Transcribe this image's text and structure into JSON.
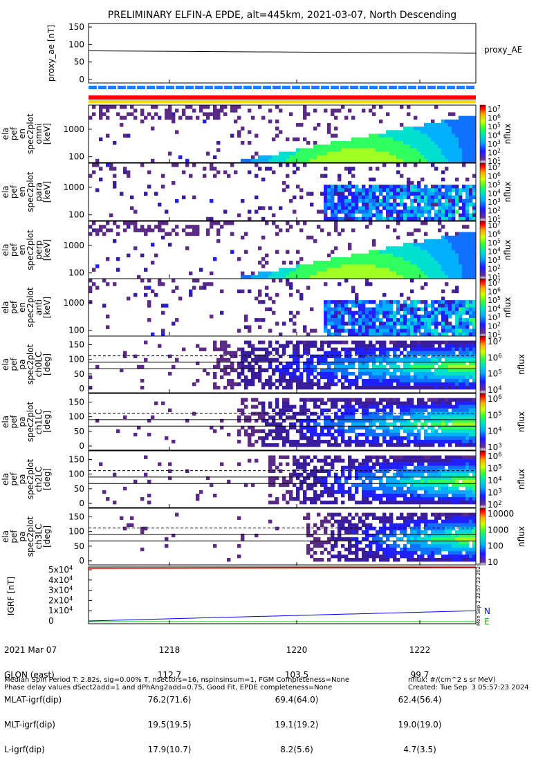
{
  "title": "PRELIMINARY ELFIN-A EPDE, alt=445km, 2021-03-07, North Descending",
  "colors": {
    "proxy": "#000000",
    "bar_blue": "#1E7BFF",
    "bar_red": "#FF0000",
    "bar_yellow": "#FFD700",
    "igrf_N": "#0000FF",
    "igrf_E": "#00CC00"
  },
  "chart_data": [
    {
      "type": "line",
      "panel": "proxy_ae",
      "ylabel": "proxy_ae [nT]",
      "legend": "proxy_AE",
      "yticks": [
        "150",
        "100",
        "50",
        "0"
      ],
      "ylim": [
        -10,
        160
      ],
      "x": [
        "1217",
        "1223"
      ],
      "values": [
        82,
        75
      ]
    },
    {
      "type": "heatmap",
      "panel": "energy-spectrograms",
      "ylabel": [
        "ela pef en spec2plot omni [keV]",
        "ela pef en spec2plot para [keV]",
        "ela pef en spec2plot perp [keV]",
        "ela pef en spec2plot anti [keV]"
      ],
      "yticks": [
        "1000",
        "100"
      ],
      "colorbar_label": "nflux",
      "colorbar_ticks": [
        "10^7",
        "10^6",
        "10^5",
        "10^4",
        "10^3",
        "10^2",
        "10^1"
      ],
      "scale": "log"
    },
    {
      "type": "heatmap",
      "panel": "pitch-angle-spectrograms",
      "ylabel": [
        "ela pef pa spec2plot ch0LC [deg]",
        "ela pef pa spec2plot ch1LC [deg]",
        "ela pef pa spec2plot ch2LC [deg]",
        "ela pef pa spec2plot ch3LC [deg]"
      ],
      "yticks": [
        "150",
        "100",
        "50",
        "0"
      ],
      "colorbar_label": "nflux",
      "colorbar_ticks": [
        [
          "10^7",
          "10^6",
          "10^5",
          "10^4"
        ],
        [
          "10^6",
          "10^5",
          "10^4",
          "10^3"
        ],
        [
          "10^6",
          "10^5",
          "10^4",
          "10^3",
          "10^2"
        ],
        [
          "10000",
          "1000",
          "100",
          "10"
        ]
      ]
    },
    {
      "type": "line",
      "panel": "igrf",
      "ylabel": "IGRF [nT]",
      "yticks": [
        "5x10^4",
        "4x10^4",
        "3x10^4",
        "2x10^4",
        "1x10^4",
        "0"
      ],
      "series": [
        {
          "name": "N",
          "values": [
            0,
            10000
          ]
        },
        {
          "name": "E",
          "values": [
            0,
            0
          ]
        }
      ],
      "x": [
        "1217",
        "1223"
      ]
    }
  ],
  "axis": {
    "row_labels": [
      "2021 Mar 07",
      "GLON (east)",
      "MLAT-igrf(dip)",
      "MLT-igrf(dip)",
      "L-igrf(dip)"
    ],
    "ticks": [
      {
        "time": "1218",
        "glon": "112.7",
        "mlat": "76.2(71.6)",
        "mlt": "19.5(19.5)",
        "l": "17.9(10.7)"
      },
      {
        "time": "1220",
        "glon": "103.5",
        "mlat": "69.4(64.0)",
        "mlt": "19.1(19.2)",
        "l": "8.2(5.6)"
      },
      {
        "time": "1222",
        "glon": "99.7",
        "mlat": "62.4(56.4)",
        "mlt": "19.0(19.0)",
        "l": "4.7(3.5)"
      }
    ]
  },
  "footer": {
    "line1": "Median Spin Period T: 2.82s, sig=0.00% T, nsectors=16, nspinsinsum=1, FGM Completeness=None",
    "line2": "Phase delay values dSect2add=1 and dPhAng2add=0.75, Good Fit, EPDE completeness=None",
    "units": "nflux: #/(cm^2 s sr MeV)",
    "created": "Created: Tue Sep  3 05:57:23 2024",
    "side_stamp": "Mon Sep  2 22:57:23 2024"
  }
}
